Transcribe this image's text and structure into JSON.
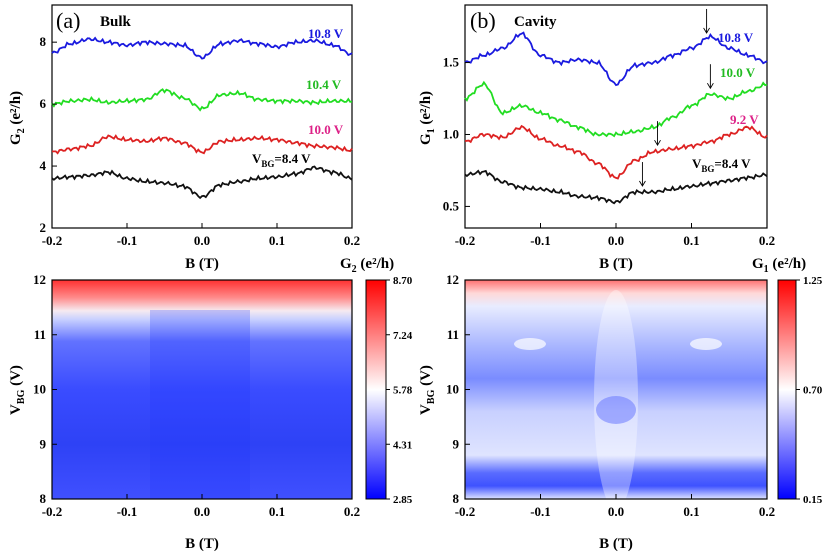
{
  "chart_data": [
    {
      "type": "line",
      "panel": "(a)",
      "title": "Bulk",
      "xlabel": "B (T)",
      "ylabel_main": "G",
      "ylabel_sub": "2",
      "ylabel_unit": " (e²/h)",
      "xlim": [
        -0.2,
        0.2
      ],
      "ylim": [
        2,
        9.2
      ],
      "xticks": [
        "-0.2",
        "-0.1",
        "0.0",
        "0.1",
        "0.2"
      ],
      "yticks": [
        "2",
        "4",
        "6",
        "8"
      ],
      "ytick_values": [
        2,
        4,
        6,
        8
      ],
      "x": [
        -0.2,
        -0.175,
        -0.15,
        -0.125,
        -0.1,
        -0.075,
        -0.05,
        -0.025,
        0.0,
        0.025,
        0.05,
        0.075,
        0.1,
        0.125,
        0.15,
        0.175,
        0.2
      ],
      "series": [
        {
          "name": "10.8 V",
          "color": "#1a1adf",
          "values": [
            7.65,
            7.95,
            8.1,
            8.0,
            7.9,
            8.0,
            7.95,
            7.9,
            7.5,
            7.95,
            8.05,
            7.95,
            7.85,
            8.0,
            8.05,
            7.9,
            7.6
          ]
        },
        {
          "name": "10.4 V",
          "color": "#22dd22",
          "values": [
            6.0,
            6.1,
            6.15,
            6.05,
            6.1,
            6.15,
            6.45,
            6.2,
            5.85,
            6.3,
            6.35,
            6.15,
            6.1,
            6.1,
            6.05,
            6.1,
            6.1
          ]
        },
        {
          "name": "10.0 V",
          "color": "#dd2222",
          "values": [
            4.45,
            4.55,
            4.65,
            4.95,
            4.85,
            4.8,
            4.9,
            4.75,
            4.45,
            4.8,
            4.85,
            4.9,
            4.85,
            4.75,
            4.65,
            4.6,
            4.5
          ]
        },
        {
          "name": "8.4 V",
          "color": "#111111",
          "values": [
            3.6,
            3.65,
            3.7,
            3.8,
            3.6,
            3.5,
            3.45,
            3.35,
            3.0,
            3.4,
            3.5,
            3.6,
            3.65,
            3.75,
            3.95,
            3.8,
            3.6
          ]
        }
      ],
      "curve_labels": [
        "10.8 V",
        "10.4 V",
        "10.0 V",
        "V",
        "BG",
        "=8.4 V"
      ]
    },
    {
      "type": "line",
      "panel": "(b)",
      "title": "Cavity",
      "xlabel": "B (T)",
      "ylabel_main": "G",
      "ylabel_sub": "1",
      "ylabel_unit": " (e²/h)",
      "xlim": [
        -0.2,
        0.2
      ],
      "ylim": [
        0.35,
        1.9
      ],
      "xticks": [
        "-0.2",
        "-0.1",
        "0.0",
        "0.1",
        "0.2"
      ],
      "yticks": [
        "0.5",
        "1.0",
        "1.5"
      ],
      "ytick_values": [
        0.5,
        1.0,
        1.5
      ],
      "x": [
        -0.2,
        -0.175,
        -0.15,
        -0.125,
        -0.1,
        -0.075,
        -0.05,
        -0.025,
        0.0,
        0.025,
        0.05,
        0.075,
        0.1,
        0.125,
        0.15,
        0.175,
        0.2
      ],
      "series": [
        {
          "name": "10.8 V",
          "color": "#1a1adf",
          "values": [
            1.5,
            1.55,
            1.6,
            1.7,
            1.55,
            1.5,
            1.52,
            1.5,
            1.35,
            1.48,
            1.5,
            1.55,
            1.6,
            1.68,
            1.6,
            1.55,
            1.5
          ]
        },
        {
          "name": "10.0 V",
          "color": "#22dd22",
          "values": [
            1.25,
            1.35,
            1.15,
            1.2,
            1.15,
            1.1,
            1.05,
            1.0,
            1.0,
            1.02,
            1.05,
            1.12,
            1.2,
            1.28,
            1.25,
            1.3,
            1.35
          ]
        },
        {
          "name": "9.2 V",
          "color": "#dd2222",
          "values": [
            0.95,
            1.0,
            0.98,
            1.05,
            0.97,
            0.92,
            0.88,
            0.8,
            0.7,
            0.82,
            0.88,
            0.9,
            0.92,
            0.95,
            1.0,
            1.05,
            0.98
          ]
        },
        {
          "name": "8.4 V",
          "color": "#111111",
          "values": [
            0.72,
            0.74,
            0.67,
            0.63,
            0.62,
            0.6,
            0.57,
            0.56,
            0.53,
            0.6,
            0.6,
            0.62,
            0.64,
            0.66,
            0.68,
            0.7,
            0.72
          ]
        }
      ],
      "curve_labels": [
        "10.8 V",
        "10.0 V",
        "9.2 V",
        "V",
        "BG",
        "=8.4 V"
      ],
      "arrows_at_B": [
        0.12,
        0.125,
        0.055,
        0.035
      ]
    },
    {
      "type": "heatmap",
      "xlabel": "B (T)",
      "ylabel_main": "V",
      "ylabel_sub": "BG",
      "ylabel_unit": " (V)",
      "xlim": [
        -0.2,
        0.2
      ],
      "ylim": [
        8,
        12
      ],
      "xticks": [
        "-0.2",
        "-0.1",
        "0.0",
        "0.1",
        "0.2"
      ],
      "yticks": [
        "8",
        "9",
        "10",
        "11",
        "12"
      ],
      "colorbar_title_main": "G",
      "colorbar_title_sub": "2",
      "colorbar_title_unit": " (e²/h)",
      "colorbar_ticks": [
        "8.70",
        "7.24",
        "5.78",
        "4.31",
        "2.85"
      ],
      "colorbar_range": [
        2.85,
        8.7
      ]
    },
    {
      "type": "heatmap",
      "xlabel": "B (T)",
      "ylabel_main": "V",
      "ylabel_sub": "BG",
      "ylabel_unit": " (V)",
      "xlim": [
        -0.2,
        0.2
      ],
      "ylim": [
        8,
        12
      ],
      "xticks": [
        "-0.2",
        "-0.1",
        "0.0",
        "0.1",
        "0.2"
      ],
      "yticks": [
        "8",
        "9",
        "10",
        "11",
        "12"
      ],
      "colorbar_title_main": "G",
      "colorbar_title_sub": "1",
      "colorbar_title_unit": " (e²/h)",
      "colorbar_ticks": [
        "1.25",
        "0.70",
        "0.15"
      ],
      "colorbar_range": [
        0.15,
        1.25
      ]
    }
  ],
  "colors": {
    "blue": "#1a1adf",
    "green": "#22dd22",
    "red": "#dd2222",
    "black": "#111111",
    "label_red": "#dd2288"
  }
}
